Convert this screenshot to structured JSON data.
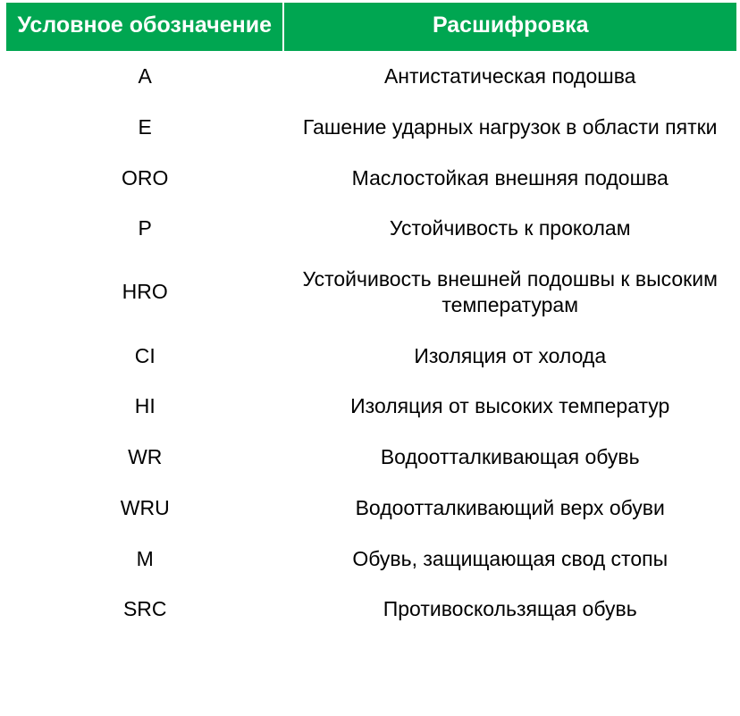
{
  "table": {
    "header_bg": "#00a651",
    "header_fg": "#ffffff",
    "body_fg": "#000000",
    "body_bg": "#ffffff",
    "header_fontsize": 25,
    "body_fontsize": 23,
    "columns": [
      {
        "key": "code",
        "label": "Условное обозначение"
      },
      {
        "key": "desc",
        "label": "Расшифровка"
      }
    ],
    "rows": [
      {
        "code": "A",
        "desc": "Антистатическая подошва"
      },
      {
        "code": "E",
        "desc": "Гашение ударных нагрузок в области пятки"
      },
      {
        "code": "ORO",
        "desc": "Маслостойкая внешняя подошва"
      },
      {
        "code": "P",
        "desc": "Устойчивость к проколам"
      },
      {
        "code": "HRO",
        "desc": "Устойчивость внешней подошвы к высоким температурам"
      },
      {
        "code": "CI",
        "desc": "Изоляция от холода"
      },
      {
        "code": "HI",
        "desc": "Изоляция от высоких температур"
      },
      {
        "code": "WR",
        "desc": "Водоотталкивающая обувь"
      },
      {
        "code": "WRU",
        "desc": "Водоотталкивающий верх обуви"
      },
      {
        "code": "M",
        "desc": "Обувь, защищающая свод стопы"
      },
      {
        "code": "SRC",
        "desc": "Противоскользящая обувь"
      }
    ]
  }
}
